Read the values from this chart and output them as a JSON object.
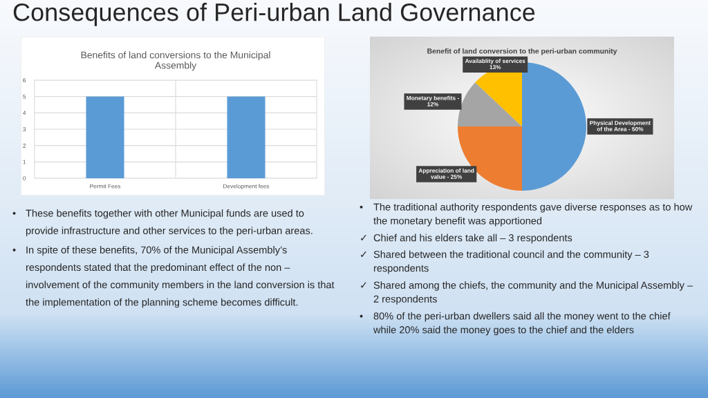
{
  "chart_data": [
    {
      "type": "other",
      "title": "Consequences of Peri-urban Land Governance"
    },
    {
      "type": "bar",
      "title": "Benefits of land conversions to the Municipal Assembly",
      "categories": [
        "Permit Fees",
        "Development fees"
      ],
      "values": [
        5,
        5
      ],
      "color": "#5b9bd5",
      "ylim": [
        0,
        6
      ],
      "yticks": [
        0,
        1,
        2,
        3,
        4,
        5,
        6
      ],
      "grid": true
    },
    {
      "type": "pie",
      "title": "Benefit of land conversion to the peri-urban community",
      "categories": [
        "Physical Development of the Area - 50%",
        "Appreciation of land value - 25%",
        "Monetary benefits - 12%",
        "Availablity of services 13%"
      ],
      "values": [
        50,
        25,
        12,
        13
      ],
      "colors": [
        "#5b9bd5",
        "#ed7d31",
        "#a5a5a5",
        "#ffc000"
      ]
    },
    {
      "type": "other",
      "annotations": [
        "• These benefits together with other Municipal funds are used to provide infrastructure and other services to the peri-urban areas.",
        "• In spite of these benefits, 70% of the Municipal Assembly’s respondents stated that the predominant effect of the non – involvement of the community members in the land conversion is that the implementation of the planning scheme becomes difficult."
      ]
    },
    {
      "type": "other",
      "annotations": [
        "• The traditional authority respondents gave diverse responses as to how the monetary benefit was apportioned",
        "✓ Chief and his elders take all – 3 respondents",
        "✓ Shared between the traditional council and the community – 3 respondents",
        "✓ Shared among the chiefs, the community and the Municipal Assembly – 2 respondents",
        "• 80% of the peri-urban dwellers said all the money went to the chief while 20% said the money goes to the chief and the elders"
      ]
    }
  ]
}
